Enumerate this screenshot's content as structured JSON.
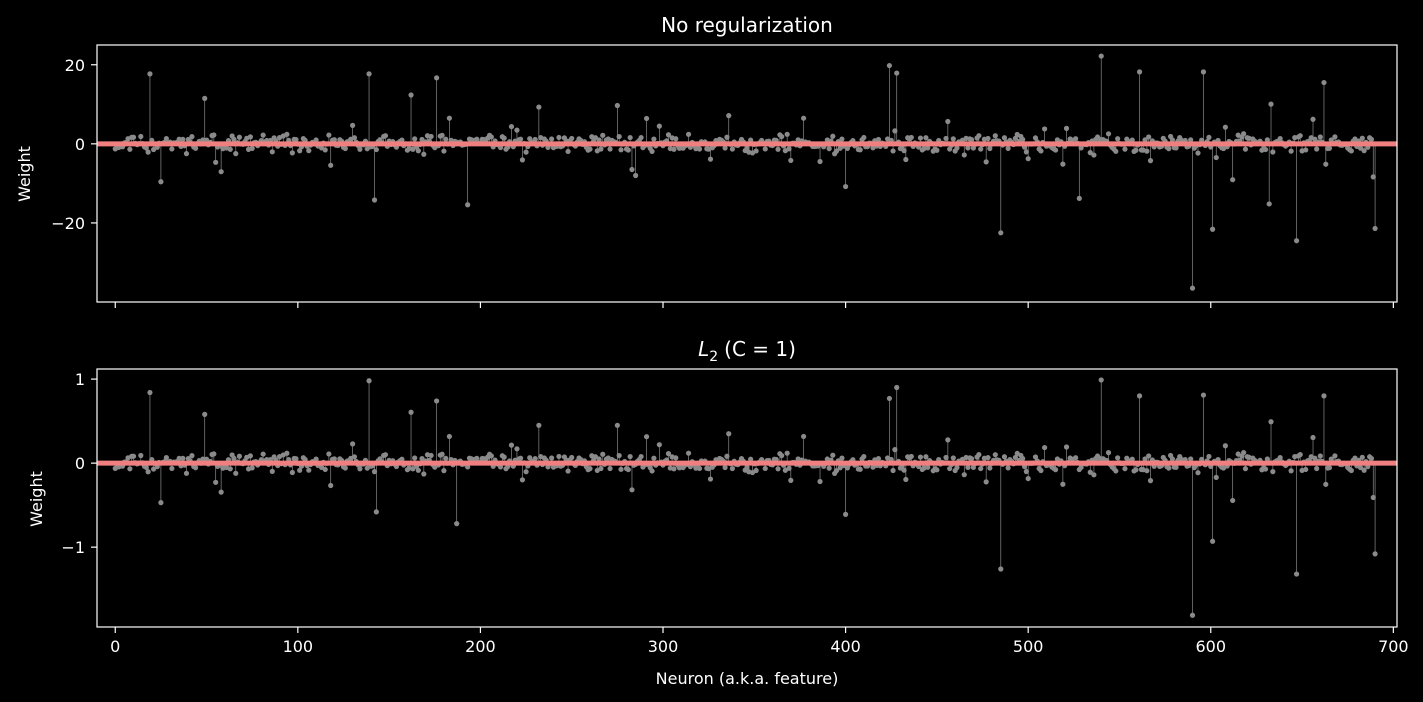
{
  "figure": {
    "background": "#000000",
    "stem_color": "#8a8a8a",
    "baseline_color": "#f08080"
  },
  "chart_data": [
    {
      "type": "scatter",
      "title_text": "No regularization",
      "xlabel": "",
      "ylabel": "Weight",
      "xlim": [
        -10,
        702
      ],
      "ylim": [
        -40,
        25
      ],
      "x_ticks": [
        0,
        100,
        200,
        300,
        400,
        500,
        600,
        700
      ],
      "y_ticks": [
        -20,
        0,
        20
      ],
      "x_tick_labels_visible": false,
      "seed": 11,
      "scale": 20,
      "n": 691,
      "highlights": [
        [
          19,
          17.7
        ],
        [
          49,
          11.5
        ],
        [
          139,
          17.7
        ],
        [
          142,
          -14.2
        ],
        [
          176,
          16.7
        ],
        [
          193,
          -15.4
        ],
        [
          232,
          9.3
        ],
        [
          275,
          9.7
        ],
        [
          285,
          -8.0
        ],
        [
          400,
          -10.8
        ],
        [
          424,
          19.8
        ],
        [
          428,
          17.9
        ],
        [
          485,
          -22.5
        ],
        [
          540,
          22.2
        ],
        [
          561,
          18.2
        ],
        [
          590,
          -36.5
        ],
        [
          596,
          18.2
        ],
        [
          601,
          -21.6
        ],
        [
          647,
          -24.5
        ],
        [
          662,
          15.5
        ],
        [
          690,
          -21.4
        ],
        [
          528,
          -13.8
        ],
        [
          632,
          -15.2
        ]
      ]
    },
    {
      "type": "scatter",
      "title_text": "(C = 1)",
      "title_math": "L",
      "title_sub": "2",
      "xlabel": "Neuron (a.k.a. feature)",
      "ylabel": "Weight",
      "xlim": [
        -10,
        702
      ],
      "ylim": [
        -1.95,
        1.12
      ],
      "x_ticks": [
        0,
        100,
        200,
        300,
        400,
        500,
        600,
        700
      ],
      "y_ticks": [
        -1,
        0,
        1
      ],
      "x_tick_labels_visible": true,
      "seed": 11,
      "scale": 0.98,
      "n": 691,
      "highlights": [
        [
          19,
          0.84
        ],
        [
          49,
          0.58
        ],
        [
          139,
          0.98
        ],
        [
          143,
          -0.58
        ],
        [
          176,
          0.74
        ],
        [
          187,
          -0.72
        ],
        [
          232,
          0.45
        ],
        [
          275,
          0.45
        ],
        [
          400,
          -0.61
        ],
        [
          424,
          0.77
        ],
        [
          428,
          0.9
        ],
        [
          485,
          -1.26
        ],
        [
          540,
          0.99
        ],
        [
          561,
          0.8
        ],
        [
          590,
          -1.81
        ],
        [
          596,
          0.81
        ],
        [
          601,
          -0.93
        ],
        [
          647,
          -1.32
        ],
        [
          662,
          0.8
        ],
        [
          690,
          -1.08
        ]
      ]
    }
  ]
}
